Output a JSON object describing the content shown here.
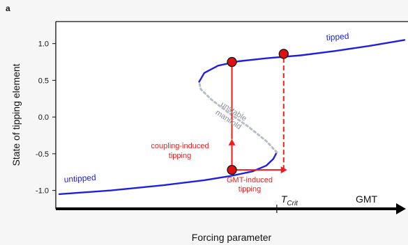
{
  "panel_label": "a",
  "chart_data": {
    "type": "line",
    "title": "",
    "xlabel": "Forcing parameter",
    "ylabel": "State of tipping element",
    "yticks": [
      "1.0",
      "0.5",
      "0.0",
      "-0.5",
      "-1.0"
    ],
    "ylim": [
      -1.25,
      1.3
    ],
    "xlim": [
      0,
      1
    ],
    "grid": false,
    "axis_arrow_label": "GMT",
    "tcrit_label": "T",
    "tcrit_subscript": "Crit",
    "tcrit_x": 0.63,
    "colors": {
      "branch": "#1f1fe0",
      "unstable": "#b9bdc6",
      "transition": "#ee1c1c",
      "marker": "#e01010",
      "background": "#f6f6f6",
      "plot_bg": "#ffffff"
    },
    "series": [
      {
        "name": "untipped",
        "style": "solid",
        "points": [
          [
            0.0,
            -1.05
          ],
          [
            0.15,
            -1.0
          ],
          [
            0.3,
            -0.93
          ],
          [
            0.42,
            -0.86
          ],
          [
            0.5,
            -0.8
          ],
          [
            0.56,
            -0.74
          ],
          [
            0.6,
            -0.66
          ],
          [
            0.62,
            -0.57
          ],
          [
            0.63,
            -0.48
          ]
        ]
      },
      {
        "name": "unstable manifold",
        "style": "dashed",
        "points": [
          [
            0.63,
            -0.48
          ],
          [
            0.6,
            -0.33
          ],
          [
            0.55,
            -0.14
          ],
          [
            0.49,
            0.06
          ],
          [
            0.44,
            0.24
          ],
          [
            0.41,
            0.38
          ],
          [
            0.405,
            0.48
          ]
        ]
      },
      {
        "name": "tipped",
        "style": "solid",
        "points": [
          [
            0.405,
            0.48
          ],
          [
            0.42,
            0.6
          ],
          [
            0.46,
            0.7
          ],
          [
            0.52,
            0.76
          ],
          [
            0.6,
            0.8
          ],
          [
            0.7,
            0.84
          ],
          [
            0.8,
            0.9
          ],
          [
            0.9,
            0.97
          ],
          [
            1.0,
            1.05
          ]
        ]
      }
    ],
    "markers": [
      {
        "x": 0.5,
        "y": -0.72
      },
      {
        "x": 0.5,
        "y": 0.75
      },
      {
        "x": 0.65,
        "y": 0.86
      }
    ],
    "transitions": [
      {
        "type": "arrow-up",
        "from": [
          0.5,
          -0.72
        ],
        "to": [
          0.5,
          -0.3
        ]
      },
      {
        "type": "line",
        "from": [
          0.5,
          -0.3
        ],
        "to": [
          0.5,
          0.75
        ]
      },
      {
        "type": "arrow-right",
        "from": [
          0.5,
          -0.72
        ],
        "to": [
          0.66,
          -0.72
        ]
      },
      {
        "type": "dashed-line",
        "from": [
          0.65,
          -0.72
        ],
        "to": [
          0.65,
          0.86
        ]
      }
    ],
    "annotations": {
      "untipped": "untipped",
      "tipped": "tipped",
      "unstable_line1": "unstable",
      "unstable_line2": "manifold",
      "coupling_line1": "coupling-induced",
      "coupling_line2": "tipping",
      "gmt_line1": "GMT-induced",
      "gmt_line2": "tipping"
    }
  }
}
